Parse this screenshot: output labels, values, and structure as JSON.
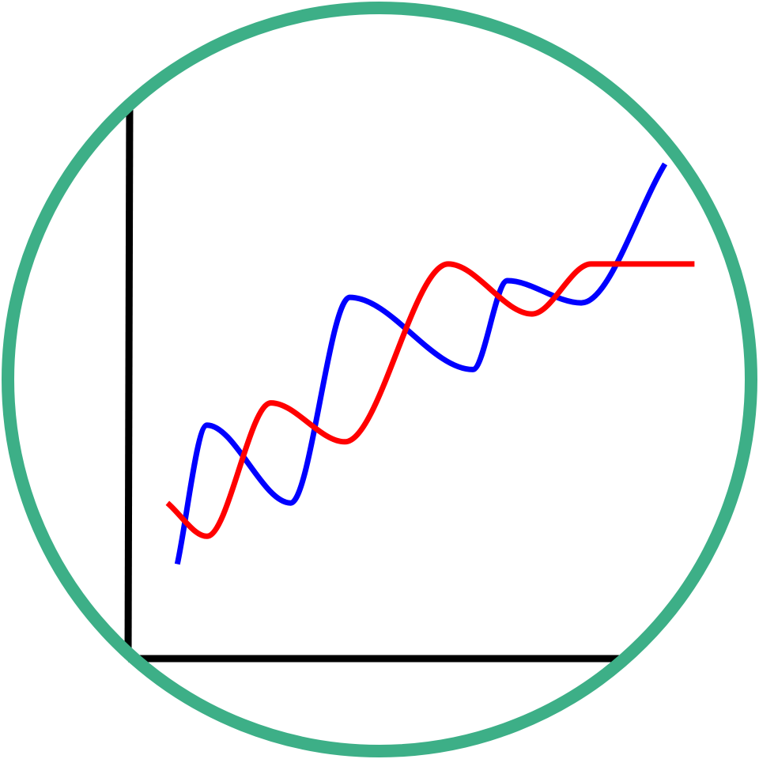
{
  "colors": {
    "ring": "#3daf87",
    "axis": "#000000",
    "background": "#ffffff"
  },
  "chart_data": {
    "type": "line",
    "title": "",
    "xlabel": "",
    "ylabel": "",
    "xlim": [
      0,
      10
    ],
    "ylim": [
      0,
      10
    ],
    "grid": false,
    "legend": "none",
    "series": [
      {
        "color": "#0000ff",
        "x": [
          1.0,
          1.6,
          3.3,
          4.5,
          7.0,
          7.7,
          9.2,
          10.9
        ],
        "y": [
          1.7,
          4.2,
          2.8,
          6.5,
          5.2,
          6.8,
          6.4,
          8.9
        ]
      },
      {
        "color": "#ff0000",
        "x": [
          0.8,
          1.6,
          2.9,
          4.4,
          6.5,
          8.2,
          9.4,
          11.5
        ],
        "y": [
          2.8,
          2.2,
          4.6,
          3.9,
          7.1,
          6.2,
          7.1,
          7.1
        ]
      }
    ]
  }
}
